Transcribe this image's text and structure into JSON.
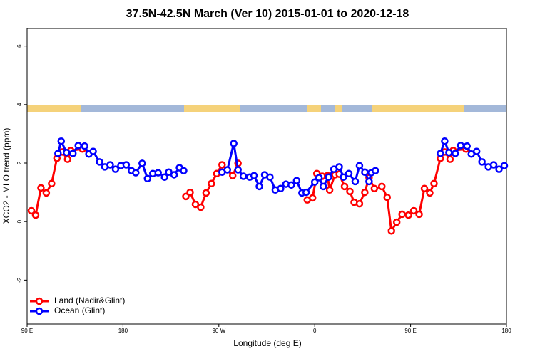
{
  "chart_data": {
    "type": "line",
    "title": "37.5N-42.5N March (Ver 10)   2015-01-01 to 2020-12-18",
    "x_label": "Longitude (deg E)",
    "y_label": "XCO2 - MLO trend (ppm)",
    "xlim": [
      90,
      540
    ],
    "ylim": [
      -3.5,
      6.6
    ],
    "xticks": [
      {
        "value": 90,
        "label": "90 E"
      },
      180,
      {
        "value": 270,
        "label": "90 W"
      },
      {
        "value": 360,
        "label": "0"
      },
      {
        "value": 450,
        "label": "90 E"
      },
      {
        "value": 540,
        "label": "180"
      }
    ],
    "yticks": [
      -2,
      0,
      2,
      4,
      6
    ],
    "legend": "bottom-left",
    "series": [
      {
        "name": "Land (Nadir&Glint)",
        "color": "#ff0000",
        "x": [
          94,
          98,
          103,
          108,
          113,
          118,
          123,
          128,
          131,
          142,
          190,
          239,
          243,
          248,
          253,
          258,
          263,
          268,
          273,
          283,
          288,
          320,
          353,
          358,
          362,
          367,
          372,
          374,
          379,
          383,
          388,
          393,
          397,
          402,
          407,
          411,
          416,
          423,
          428,
          432,
          437,
          442,
          448,
          453,
          458,
          463,
          468,
          472,
          478,
          482,
          487,
          490,
          502
        ],
        "values": [
          0.37,
          0.22,
          1.15,
          0.98,
          1.3,
          2.16,
          2.38,
          2.13,
          2.43,
          2.48,
          null,
          0.86,
          1.0,
          0.59,
          0.49,
          0.98,
          1.3,
          1.64,
          1.94,
          1.57,
          1.99,
          null,
          0.74,
          0.81,
          1.64,
          1.55,
          1.57,
          1.08,
          1.6,
          1.62,
          1.2,
          1.03,
          0.66,
          0.61,
          1.0,
          1.5,
          1.13,
          1.2,
          0.83,
          -0.32,
          -0.02,
          0.25,
          0.22,
          0.37,
          0.25,
          1.13,
          0.98,
          1.3,
          2.16,
          2.38,
          2.13,
          2.43,
          2.48
        ]
      },
      {
        "name": "Ocean (Glint)",
        "color": "#0000ff",
        "x": [
          119,
          122,
          127,
          133,
          138,
          144,
          148,
          152,
          158,
          163,
          168,
          173,
          178,
          183,
          188,
          192,
          198,
          203,
          208,
          213,
          219,
          223,
          228,
          233,
          237,
          255,
          273,
          278,
          284,
          288,
          293,
          299,
          303,
          308,
          313,
          318,
          323,
          328,
          333,
          338,
          343,
          348,
          352,
          360,
          364,
          368,
          373,
          378,
          383,
          387,
          392,
          398,
          402,
          407,
          411,
          413,
          417,
          450,
          478,
          482,
          486,
          492,
          497,
          503,
          507,
          512,
          517,
          523,
          528,
          533,
          538
        ],
        "values": [
          2.33,
          2.75,
          2.36,
          2.33,
          2.6,
          2.58,
          2.31,
          2.4,
          2.04,
          1.87,
          1.94,
          1.79,
          1.91,
          1.94,
          1.74,
          1.67,
          1.99,
          1.47,
          1.64,
          1.67,
          1.52,
          1.69,
          1.6,
          1.84,
          1.74,
          null,
          1.69,
          1.77,
          2.67,
          1.77,
          1.55,
          1.52,
          1.57,
          1.2,
          1.6,
          1.52,
          1.08,
          1.13,
          1.28,
          1.25,
          1.4,
          0.98,
          1.0,
          1.35,
          1.5,
          1.2,
          1.52,
          1.79,
          1.87,
          1.52,
          1.64,
          1.37,
          1.91,
          1.69,
          1.37,
          1.67,
          1.74,
          null,
          2.33,
          2.75,
          2.36,
          2.33,
          2.6,
          2.58,
          2.31,
          2.4,
          2.04,
          1.87,
          1.94,
          1.79,
          1.91
        ]
      }
    ]
  }
}
